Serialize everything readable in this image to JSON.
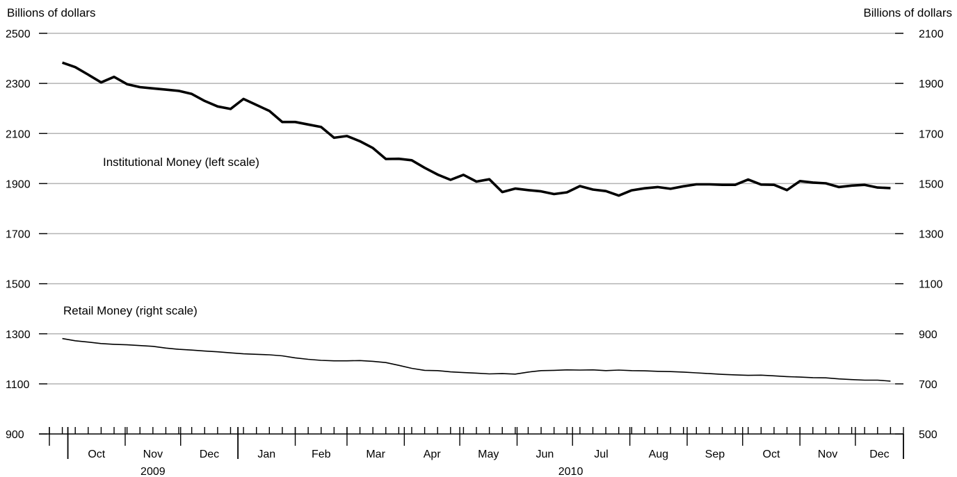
{
  "chart_data": {
    "type": "line",
    "left_unit_label": "Billions of dollars",
    "right_unit_label": "Billions of dollars",
    "left_axis": {
      "min": 900,
      "max": 2500,
      "ticks": [
        900,
        1100,
        1300,
        1500,
        1700,
        1900,
        2100,
        2300,
        2500
      ]
    },
    "right_axis": {
      "min": 500,
      "max": 2100,
      "ticks": [
        500,
        700,
        900,
        1100,
        1300,
        1500,
        1700,
        1900,
        2100
      ]
    },
    "grid": true,
    "x_axis": {
      "start": "2009-09-21",
      "end": "2010-12-27",
      "months": [
        {
          "label": "Oct",
          "start": "2009-10-01",
          "end": "2009-11-01"
        },
        {
          "label": "Nov",
          "start": "2009-11-01",
          "end": "2009-12-01"
        },
        {
          "label": "Dec",
          "start": "2009-12-01",
          "end": "2010-01-01"
        },
        {
          "label": "Jan",
          "start": "2010-01-01",
          "end": "2010-02-01"
        },
        {
          "label": "Feb",
          "start": "2010-02-01",
          "end": "2010-03-01"
        },
        {
          "label": "Mar",
          "start": "2010-03-01",
          "end": "2010-04-01"
        },
        {
          "label": "Apr",
          "start": "2010-04-01",
          "end": "2010-05-01"
        },
        {
          "label": "May",
          "start": "2010-05-01",
          "end": "2010-06-01"
        },
        {
          "label": "Jun",
          "start": "2010-06-01",
          "end": "2010-07-01"
        },
        {
          "label": "Jul",
          "start": "2010-07-01",
          "end": "2010-08-01"
        },
        {
          "label": "Aug",
          "start": "2010-08-01",
          "end": "2010-09-01"
        },
        {
          "label": "Sep",
          "start": "2010-09-01",
          "end": "2010-10-01"
        },
        {
          "label": "Oct",
          "start": "2010-10-01",
          "end": "2010-11-01"
        },
        {
          "label": "Nov",
          "start": "2010-11-01",
          "end": "2010-12-01"
        },
        {
          "label": "Dec",
          "start": "2010-12-01",
          "end": "2010-12-27"
        }
      ],
      "years": [
        {
          "label": "2009",
          "start": "2009-10-01",
          "end": "2010-01-01"
        },
        {
          "label": "2010",
          "start": "2010-01-01",
          "end": "2010-12-27"
        }
      ]
    },
    "week_ticks": [
      "2009-09-21",
      "2009-09-28",
      "2009-10-05",
      "2009-10-12",
      "2009-10-19",
      "2009-10-26",
      "2009-11-02",
      "2009-11-09",
      "2009-11-16",
      "2009-11-23",
      "2009-11-30",
      "2009-12-07",
      "2009-12-14",
      "2009-12-21",
      "2009-12-28",
      "2010-01-04",
      "2010-01-11",
      "2010-01-18",
      "2010-01-25",
      "2010-02-01",
      "2010-02-08",
      "2010-02-15",
      "2010-02-22",
      "2010-03-01",
      "2010-03-08",
      "2010-03-15",
      "2010-03-22",
      "2010-03-29",
      "2010-04-05",
      "2010-04-12",
      "2010-04-19",
      "2010-04-26",
      "2010-05-03",
      "2010-05-10",
      "2010-05-17",
      "2010-05-24",
      "2010-05-31",
      "2010-06-07",
      "2010-06-14",
      "2010-06-21",
      "2010-06-28",
      "2010-07-05",
      "2010-07-12",
      "2010-07-19",
      "2010-07-26",
      "2010-08-02",
      "2010-08-09",
      "2010-08-16",
      "2010-08-23",
      "2010-08-30",
      "2010-09-06",
      "2010-09-13",
      "2010-09-20",
      "2010-09-27",
      "2010-10-04",
      "2010-10-11",
      "2010-10-18",
      "2010-10-25",
      "2010-11-01",
      "2010-11-08",
      "2010-11-15",
      "2010-11-22",
      "2010-11-29",
      "2010-12-06",
      "2010-12-13",
      "2010-12-20",
      "2010-12-27"
    ],
    "series": [
      {
        "name": "Institutional Money (left scale)",
        "axis": "left",
        "x": [
          "2009-09-28",
          "2009-10-05",
          "2009-10-12",
          "2009-10-19",
          "2009-10-26",
          "2009-11-02",
          "2009-11-09",
          "2009-11-16",
          "2009-11-23",
          "2009-11-30",
          "2009-12-07",
          "2009-12-14",
          "2009-12-21",
          "2009-12-28",
          "2010-01-04",
          "2010-01-11",
          "2010-01-18",
          "2010-01-25",
          "2010-02-01",
          "2010-02-08",
          "2010-02-15",
          "2010-02-22",
          "2010-03-01",
          "2010-03-08",
          "2010-03-15",
          "2010-03-22",
          "2010-03-29",
          "2010-04-05",
          "2010-04-12",
          "2010-04-19",
          "2010-04-26",
          "2010-05-03",
          "2010-05-10",
          "2010-05-17",
          "2010-05-24",
          "2010-05-31",
          "2010-06-07",
          "2010-06-14",
          "2010-06-21",
          "2010-06-28",
          "2010-07-05",
          "2010-07-12",
          "2010-07-19",
          "2010-07-26",
          "2010-08-02",
          "2010-08-09",
          "2010-08-16",
          "2010-08-23",
          "2010-08-30",
          "2010-09-06",
          "2010-09-13",
          "2010-09-20",
          "2010-09-27",
          "2010-10-04",
          "2010-10-11",
          "2010-10-18",
          "2010-10-25",
          "2010-11-01",
          "2010-11-08",
          "2010-11-15",
          "2010-11-22",
          "2010-11-29",
          "2010-12-06",
          "2010-12-13",
          "2010-12-20"
        ],
        "values": [
          2383,
          2365,
          2335,
          2304,
          2326,
          2297,
          2285,
          2280,
          2275,
          2270,
          2258,
          2230,
          2208,
          2198,
          2238,
          2214,
          2190,
          2146,
          2146,
          2136,
          2126,
          2083,
          2090,
          2069,
          2042,
          1998,
          1999,
          1993,
          1963,
          1936,
          1915,
          1935,
          1908,
          1917,
          1866,
          1880,
          1874,
          1869,
          1858,
          1865,
          1890,
          1876,
          1870,
          1852,
          1873,
          1881,
          1886,
          1879,
          1889,
          1897,
          1897,
          1895,
          1895,
          1916,
          1896,
          1895,
          1874,
          1910,
          1904,
          1901,
          1886,
          1892,
          1895,
          1884,
          1882
        ],
        "line_width": 3.6
      },
      {
        "name": "Retail Money (right scale)",
        "axis": "right",
        "x": [
          "2009-09-28",
          "2009-10-05",
          "2009-10-12",
          "2009-10-19",
          "2009-10-26",
          "2009-11-02",
          "2009-11-09",
          "2009-11-16",
          "2009-11-23",
          "2009-11-30",
          "2009-12-07",
          "2009-12-14",
          "2009-12-21",
          "2009-12-28",
          "2010-01-04",
          "2010-01-11",
          "2010-01-18",
          "2010-01-25",
          "2010-02-01",
          "2010-02-08",
          "2010-02-15",
          "2010-02-22",
          "2010-03-01",
          "2010-03-08",
          "2010-03-15",
          "2010-03-22",
          "2010-03-29",
          "2010-04-05",
          "2010-04-12",
          "2010-04-19",
          "2010-04-26",
          "2010-05-03",
          "2010-05-10",
          "2010-05-17",
          "2010-05-24",
          "2010-05-31",
          "2010-06-07",
          "2010-06-14",
          "2010-06-21",
          "2010-06-28",
          "2010-07-05",
          "2010-07-12",
          "2010-07-19",
          "2010-07-26",
          "2010-08-02",
          "2010-08-09",
          "2010-08-16",
          "2010-08-23",
          "2010-08-30",
          "2010-09-06",
          "2010-09-13",
          "2010-09-20",
          "2010-09-27",
          "2010-10-04",
          "2010-10-11",
          "2010-10-18",
          "2010-10-25",
          "2010-11-01",
          "2010-11-08",
          "2010-11-15",
          "2010-11-22",
          "2010-11-29",
          "2010-12-06",
          "2010-12-13",
          "2010-12-20"
        ],
        "values": [
          881,
          872,
          867,
          861,
          858,
          856,
          853,
          850,
          843,
          838,
          835,
          831,
          828,
          824,
          820,
          818,
          816,
          812,
          804,
          798,
          794,
          792,
          792,
          793,
          790,
          785,
          774,
          762,
          754,
          753,
          748,
          745,
          743,
          740,
          741,
          739,
          747,
          753,
          754,
          756,
          755,
          756,
          753,
          755,
          753,
          752,
          750,
          749,
          747,
          744,
          741,
          738,
          736,
          734,
          735,
          732,
          729,
          727,
          725,
          724,
          720,
          717,
          715,
          715,
          711
        ],
        "line_width": 1.6
      }
    ]
  }
}
